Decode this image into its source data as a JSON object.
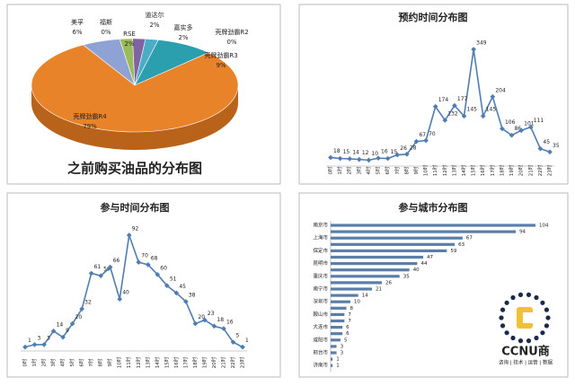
{
  "chart_data": [
    {
      "type": "pie",
      "title": "之前购买油品的分布图",
      "categories": [
        "美孚",
        "福斯",
        "RSE",
        "道达尔",
        "嘉实多",
        "壳牌劲霸R2",
        "壳牌劲霸R3",
        "壳牌劲霸R4"
      ],
      "values": [
        6,
        0,
        2,
        2,
        2,
        0,
        9,
        79
      ],
      "value_labels": [
        "6%",
        "0%",
        "2%",
        "2%",
        "2%",
        "0%",
        "9%",
        "79%"
      ],
      "colors": [
        "#8ea3d4",
        "#c0504d",
        "#9bbb59",
        "#8064a2",
        "#4bacc6",
        "#f2c14e",
        "#2b9fae",
        "#e8832a"
      ]
    },
    {
      "type": "line",
      "title": "预约时间分布图",
      "categories": [
        "0时",
        "1时",
        "2时",
        "3时",
        "4时",
        "5时",
        "6时",
        "7时",
        "8时",
        "9时",
        "10时",
        "11时",
        "12时",
        "13时",
        "14时",
        "15时",
        "16时",
        "17时",
        "18时",
        "19时",
        "20时",
        "21时",
        "22时",
        "23时"
      ],
      "values": [
        18,
        15,
        14,
        12,
        10,
        16,
        15,
        26,
        28,
        67,
        70,
        174,
        132,
        177,
        145,
        349,
        145,
        204,
        106,
        86,
        101,
        111,
        45,
        35
      ],
      "color": "#4f7db3"
    },
    {
      "type": "line",
      "title": "参与时间分布图",
      "categories": [
        "0时",
        "1时",
        "2时",
        "3时",
        "4时",
        "5时",
        "6时",
        "7时",
        "8时",
        "9时",
        "10时",
        "11时",
        "12时",
        "13时",
        "14时",
        "15时",
        "16时",
        "17时",
        "18时",
        "19时",
        "20时",
        "21时",
        "22时",
        "23时"
      ],
      "values": [
        1,
        3,
        3,
        14,
        9,
        20,
        32,
        61,
        59,
        66,
        40,
        92,
        70,
        68,
        60,
        51,
        45,
        38,
        20,
        23,
        18,
        16,
        5,
        1
      ],
      "color": "#4f7db3"
    },
    {
      "type": "bar",
      "orientation": "horizontal",
      "title": "参与城市分布图",
      "categories": [
        "南京市",
        null,
        "上海市",
        null,
        "保定市",
        null,
        "昆明市",
        null,
        "重庆市",
        null,
        "南宁市",
        null,
        "深圳市",
        null,
        "鞍山市",
        null,
        "大连市",
        null,
        "咸阳市",
        null,
        "邢台市",
        null,
        "济南市"
      ],
      "values": [
        104,
        94,
        67,
        63,
        59,
        47,
        44,
        40,
        35,
        26,
        21,
        14,
        10,
        8,
        7,
        7,
        6,
        6,
        5,
        3,
        3,
        1,
        1
      ],
      "color": "#5b7ea8"
    }
  ],
  "logo": {
    "name": "CCNU商",
    "tagline": "咨询 | 技术 | 运营 | 数据"
  }
}
